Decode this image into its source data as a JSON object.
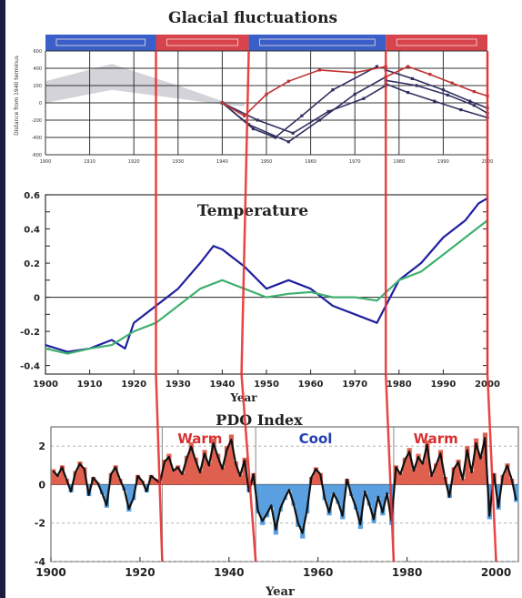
{
  "chart_data": [
    {
      "type": "line",
      "title": "Glacial fluctuations",
      "ylabel": "Distance from 1940 terminus",
      "xlim": [
        1900,
        2000
      ],
      "ylim": [
        -600,
        600
      ],
      "yticks": [
        600,
        400,
        200,
        0,
        -200,
        -400,
        -600
      ],
      "xticks": [
        1900,
        1910,
        1920,
        1930,
        1940,
        1950,
        1960,
        1970,
        1980,
        1990,
        2000
      ],
      "phase_bands": [
        {
          "from": 1900,
          "to": 1925,
          "color": "#3a5fc8"
        },
        {
          "from": 1925,
          "to": 1946,
          "color": "#d8444c"
        },
        {
          "from": 1946,
          "to": 1977,
          "color": "#3a5fc8"
        },
        {
          "from": 1977,
          "to": 2000,
          "color": "#d8444c"
        }
      ],
      "shaded_band": {
        "x": [
          1900,
          1915,
          1930,
          1940,
          1945
        ],
        "upper": [
          250,
          450,
          200,
          20,
          0
        ],
        "lower": [
          0,
          150,
          50,
          -20,
          -40
        ]
      },
      "series": [
        {
          "color": "#303060",
          "x": [
            1940,
            1947,
            1952,
            1958,
            1965,
            1975
          ],
          "y": [
            0,
            -300,
            -400,
            -150,
            150,
            420
          ]
        },
        {
          "color": "#303060",
          "x": [
            1940,
            1946,
            1955,
            1962,
            1970,
            1977
          ],
          "y": [
            0,
            -250,
            -450,
            -200,
            100,
            300
          ]
        },
        {
          "color": "#303060",
          "x": [
            1940,
            1948,
            1956,
            1964,
            1972,
            1977
          ],
          "y": [
            0,
            -200,
            -350,
            -100,
            50,
            200
          ]
        },
        {
          "color": "#c03030",
          "x": [
            1940,
            1945,
            1950,
            1955,
            1962,
            1970,
            1977
          ],
          "y": [
            0,
            -150,
            100,
            250,
            380,
            350,
            420
          ]
        },
        {
          "color": "#303060",
          "x": [
            1977,
            1982,
            1988,
            1994,
            2000
          ],
          "y": [
            220,
            120,
            20,
            -80,
            -170
          ]
        },
        {
          "color": "#303060",
          "x": [
            1977,
            1983,
            1990,
            1996,
            2000
          ],
          "y": [
            380,
            280,
            150,
            20,
            -60
          ]
        },
        {
          "color": "#303060",
          "x": [
            1977,
            1984,
            1991,
            1997,
            2000
          ],
          "y": [
            260,
            200,
            90,
            -30,
            -120
          ]
        },
        {
          "color": "#c03030",
          "x": [
            1977,
            1982,
            1987,
            1992,
            1997,
            2000
          ],
          "y": [
            300,
            420,
            330,
            230,
            130,
            80
          ]
        }
      ]
    },
    {
      "type": "line",
      "title": "Temperature",
      "xlabel": "Year",
      "xlim": [
        1900,
        2000
      ],
      "ylim": [
        -0.45,
        0.6
      ],
      "yticks": [
        0.6,
        0.5,
        0.4,
        0.3,
        0.2,
        0.1,
        0,
        -0.1,
        -0.2,
        -0.3,
        -0.4
      ],
      "ytick_labels": [
        "0.6",
        "0.5",
        "0.4",
        "0.3",
        "0.2",
        "0.1",
        "0",
        "-0.1",
        "-0.2",
        "-0.3",
        "-0.4"
      ],
      "xticks": [
        1900,
        1910,
        1920,
        1930,
        1940,
        1950,
        1960,
        1970,
        1980,
        1990,
        2000
      ],
      "xtick_labels": [
        "1900",
        "1910",
        "1920",
        "1930",
        "1940",
        "1950",
        "1960",
        "1970",
        "1980",
        "1990",
        "2000"
      ],
      "series": [
        {
          "color": "#2020a0",
          "x": [
            1900,
            1905,
            1910,
            1915,
            1918,
            1920,
            1925,
            1930,
            1935,
            1938,
            1940,
            1945,
            1950,
            1955,
            1960,
            1965,
            1970,
            1975,
            1980,
            1985,
            1990,
            1995,
            1998,
            2000
          ],
          "y": [
            -0.28,
            -0.32,
            -0.3,
            -0.25,
            -0.3,
            -0.15,
            -0.05,
            0.05,
            0.2,
            0.3,
            0.28,
            0.18,
            0.05,
            0.1,
            0.05,
            -0.05,
            -0.1,
            -0.15,
            0.1,
            0.2,
            0.35,
            0.45,
            0.55,
            0.58
          ]
        },
        {
          "color": "#40b070",
          "x": [
            1900,
            1905,
            1910,
            1915,
            1920,
            1925,
            1930,
            1935,
            1940,
            1945,
            1950,
            1955,
            1960,
            1965,
            1970,
            1975,
            1980,
            1985,
            1990,
            1995,
            2000
          ],
          "y": [
            -0.3,
            -0.33,
            -0.3,
            -0.28,
            -0.2,
            -0.15,
            -0.05,
            0.05,
            0.1,
            0.05,
            0.0,
            0.02,
            0.03,
            0.0,
            0.0,
            -0.02,
            0.1,
            0.15,
            0.25,
            0.35,
            0.45
          ]
        }
      ]
    },
    {
      "type": "bar",
      "title": "PDO Index",
      "xlabel": "Year",
      "xlim": [
        1900,
        2005
      ],
      "ylim": [
        -4,
        3
      ],
      "yticks": [
        2,
        0,
        -2,
        -4
      ],
      "ytick_labels": [
        "2",
        "0",
        "-2",
        "-4"
      ],
      "xticks": [
        1900,
        1920,
        1940,
        1960,
        1980,
        2000
      ],
      "xtick_labels": [
        "1900",
        "1920",
        "1940",
        "1960",
        "1980",
        "2000"
      ],
      "regimes": [
        {
          "label": "Warm",
          "from": 1925,
          "to": 1946,
          "color": "#d83030"
        },
        {
          "label": "Cool",
          "from": 1946,
          "to": 1977,
          "color": "#2040b0"
        },
        {
          "label": "Warm",
          "from": 1977,
          "to": 2000,
          "color": "#d83030"
        }
      ],
      "annual_values": [
        0.8,
        0.5,
        1.0,
        0.3,
        -0.4,
        0.7,
        1.2,
        0.9,
        -0.6,
        0.4,
        0.1,
        -0.5,
        -1.2,
        0.6,
        1.0,
        0.3,
        -0.3,
        -1.4,
        -0.8,
        0.5,
        0.2,
        -0.4,
        0.5,
        0.3,
        0.1,
        1.3,
        1.6,
        0.8,
        1.0,
        0.6,
        1.5,
        2.2,
        1.4,
        0.7,
        1.8,
        1.1,
        2.4,
        1.6,
        0.9,
        2.0,
        2.6,
        1.2,
        0.5,
        1.4,
        -0.4,
        0.6,
        -1.5,
        -2.1,
        -1.7,
        -1.2,
        -2.6,
        -1.4,
        -0.8,
        -0.3,
        -1.1,
        -2.2,
        -2.8,
        -1.5,
        0.4,
        0.9,
        0.6,
        -0.8,
        -1.6,
        -0.5,
        -1.0,
        -1.8,
        0.3,
        -0.6,
        -1.3,
        -2.3,
        -0.4,
        -1.1,
        -2.0,
        -0.7,
        -1.6,
        -0.5,
        -2.1,
        1.0,
        0.6,
        1.4,
        1.9,
        0.8,
        1.6,
        1.2,
        2.3,
        0.5,
        1.1,
        1.8,
        0.4,
        -0.7,
        0.9,
        1.3,
        0.3,
        2.0,
        0.7,
        2.4,
        1.5,
        2.7,
        -1.8,
        0.6,
        -1.3,
        0.5,
        1.1,
        0.3,
        -0.9
      ]
    }
  ],
  "overlay": {
    "regime_shift_years": [
      1925,
      1946,
      1977,
      2000
    ],
    "line_color": "#e83030"
  }
}
